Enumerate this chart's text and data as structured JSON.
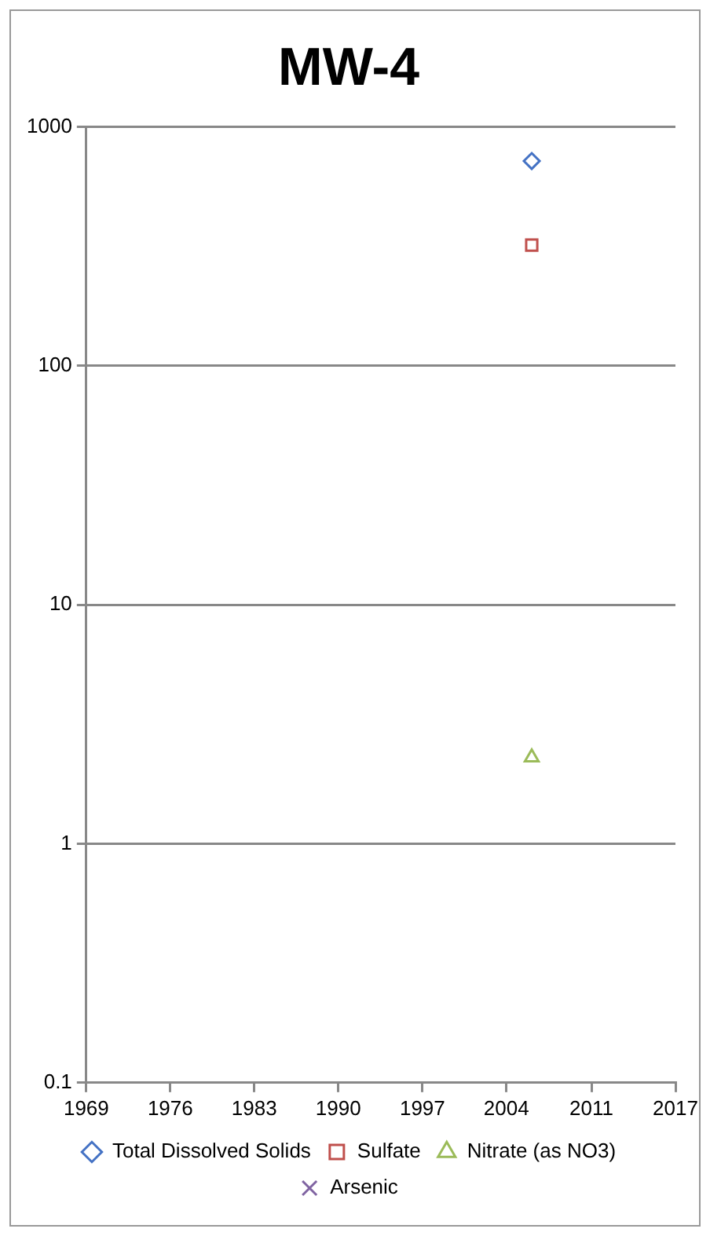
{
  "chart_data": {
    "type": "scatter",
    "title": "MW-4",
    "x": [
      "2006-02"
    ],
    "series": [
      {
        "name": "Total Dissolved Solids",
        "color": "#4472c4",
        "marker": "diamond",
        "values": [
          720
        ]
      },
      {
        "name": "Sulfate",
        "color": "#c0504d",
        "marker": "square",
        "values": [
          320
        ]
      },
      {
        "name": "Nitrate (as NO3)",
        "color": "#9bbb59",
        "marker": "triangle",
        "values": [
          2.3
        ]
      },
      {
        "name": "Arsenic",
        "color": "#8064a2",
        "marker": "cross",
        "values": [
          null
        ]
      }
    ],
    "xlim": [
      "1969-06",
      "2017-12"
    ],
    "xticks": [
      {
        "value": "1969-06",
        "label": "1969"
      },
      {
        "value": "1976-05",
        "label": "1976"
      },
      {
        "value": "1983-04",
        "label": "1983"
      },
      {
        "value": "1990-03",
        "label": "1990"
      },
      {
        "value": "1997-02",
        "label": "1997"
      },
      {
        "value": "2004-01",
        "label": "2004"
      },
      {
        "value": "2011-01",
        "label": "2011"
      },
      {
        "value": "2017-12",
        "label": "2017"
      }
    ],
    "ylim": [
      0.1,
      1000
    ],
    "yticks": [
      0.1,
      1,
      10,
      100,
      1000
    ],
    "log": "y",
    "grid": "y",
    "legend": "bottom"
  }
}
